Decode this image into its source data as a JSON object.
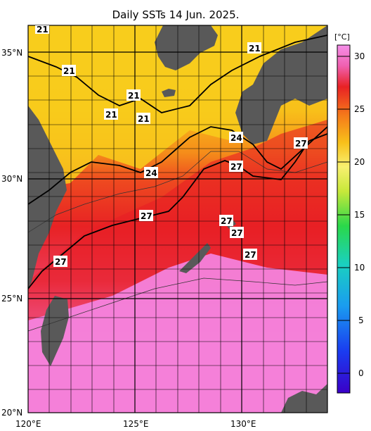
{
  "title": "Daily SSTs 14 Jun. 2025.",
  "unit": "[°C]",
  "lat_labels": [
    "35°N",
    "30°N",
    "25°N",
    "20°N"
  ],
  "lon_labels": [
    "120°E",
    "125°E",
    "130°E"
  ],
  "colorbar_ticks": [
    "30",
    "25",
    "20",
    "15",
    "10",
    "5",
    "0"
  ],
  "contour_labels": [
    "21",
    "21",
    "21",
    "21",
    "21",
    "21",
    "24",
    "24",
    "27",
    "27",
    "27",
    "27",
    "27",
    "27",
    "27"
  ],
  "colors": {
    "land": "#595959",
    "warm_pink": "#f58ce6",
    "red": "#ea2020",
    "orange": "#f89a1a",
    "yellow": "#f8d21c"
  }
}
